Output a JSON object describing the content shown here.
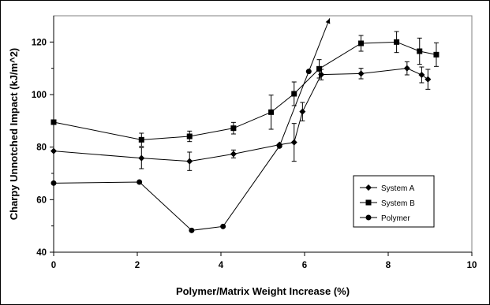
{
  "chart_data": {
    "type": "line",
    "title": "",
    "xlabel": "Polymer/Matrix Weight Increase (%)",
    "ylabel": "Charpy Unnotched Impact (kJ/m^2)",
    "xlim": [
      0,
      10
    ],
    "ylim": [
      40,
      130
    ],
    "xticks": [
      0,
      2,
      4,
      6,
      8,
      10
    ],
    "yticks": [
      40,
      60,
      80,
      100,
      120
    ],
    "grid": false,
    "legend_position": "bottom-right",
    "colors": {
      "series": "#000000",
      "background": "#ffffff"
    },
    "series": [
      {
        "name": "System A",
        "marker": "diamond",
        "points": [
          {
            "x": 0.0,
            "y": 78.5,
            "err": 0
          },
          {
            "x": 2.1,
            "y": 75.8,
            "err": 4.0
          },
          {
            "x": 3.25,
            "y": 74.6,
            "err": 3.5
          },
          {
            "x": 4.3,
            "y": 77.4,
            "err": 1.5
          },
          {
            "x": 5.4,
            "y": 80.9,
            "err": 0
          },
          {
            "x": 5.75,
            "y": 81.8,
            "err": 7.2
          },
          {
            "x": 5.95,
            "y": 93.5,
            "err": 3.5
          },
          {
            "x": 6.4,
            "y": 107.6,
            "err": 2.0
          },
          {
            "x": 7.35,
            "y": 108.0,
            "err": 2.0
          },
          {
            "x": 8.45,
            "y": 110.0,
            "err": 2.5
          },
          {
            "x": 8.8,
            "y": 107.5,
            "err": 3.0
          },
          {
            "x": 8.95,
            "y": 105.8,
            "err": 3.8
          }
        ]
      },
      {
        "name": "System B",
        "marker": "square",
        "points": [
          {
            "x": 0.0,
            "y": 89.5,
            "err": 0
          },
          {
            "x": 2.1,
            "y": 82.8,
            "err": 2.5
          },
          {
            "x": 3.25,
            "y": 84.1,
            "err": 2.0
          },
          {
            "x": 4.3,
            "y": 87.2,
            "err": 2.2
          },
          {
            "x": 5.2,
            "y": 93.3,
            "err": 6.5
          },
          {
            "x": 5.75,
            "y": 100.3,
            "err": 4.5
          },
          {
            "x": 6.35,
            "y": 109.8,
            "err": 3.5
          },
          {
            "x": 7.35,
            "y": 119.5,
            "err": 3.0
          },
          {
            "x": 8.2,
            "y": 120.0,
            "err": 4.0
          },
          {
            "x": 8.75,
            "y": 116.5,
            "err": 5.0
          },
          {
            "x": 9.15,
            "y": 115.2,
            "err": 4.5
          }
        ]
      },
      {
        "name": "Polymer",
        "marker": "circle",
        "points": [
          {
            "x": 0.0,
            "y": 66.3
          },
          {
            "x": 2.05,
            "y": 66.7
          },
          {
            "x": 3.3,
            "y": 48.3
          },
          {
            "x": 4.05,
            "y": 49.8
          },
          {
            "x": 5.4,
            "y": 80.4
          },
          {
            "x": 6.1,
            "y": 108.8
          },
          {
            "x": 6.6,
            "y": 129.0
          }
        ]
      }
    ]
  }
}
